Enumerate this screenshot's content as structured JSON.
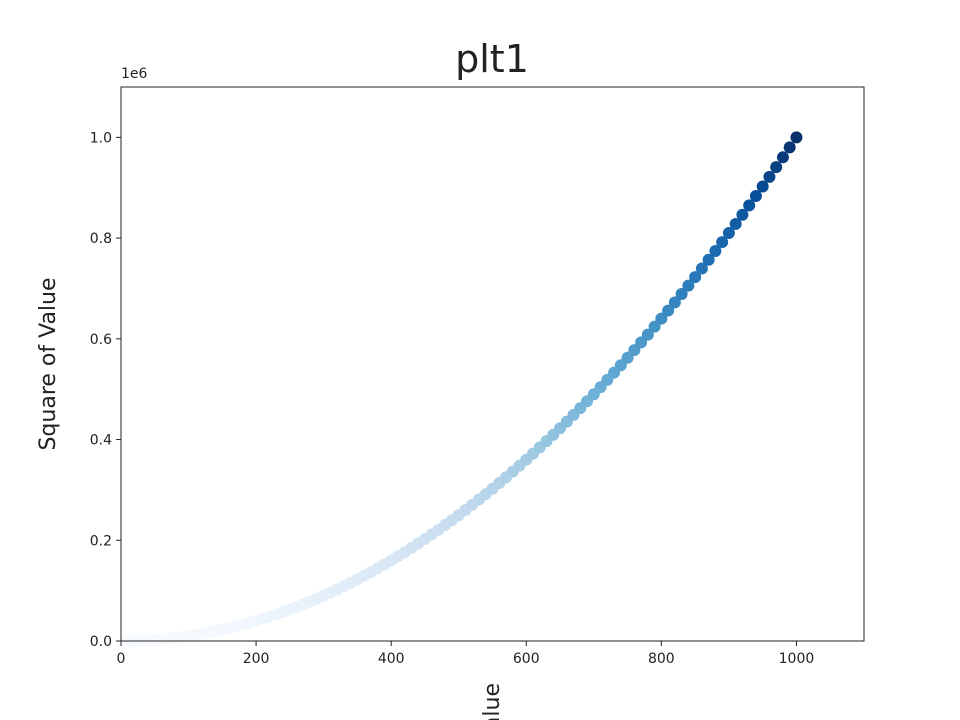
{
  "chart_data": {
    "type": "scatter",
    "title": "plt1",
    "ylabel": "Square of Value",
    "xlabel": "Value",
    "y_offset_label": "1e6",
    "cmap": "Blues",
    "x": [
      10,
      20,
      30,
      40,
      50,
      60,
      70,
      80,
      90,
      100,
      110,
      120,
      130,
      140,
      150,
      160,
      170,
      180,
      190,
      200,
      210,
      220,
      230,
      240,
      250,
      260,
      270,
      280,
      290,
      300,
      310,
      320,
      330,
      340,
      350,
      360,
      370,
      380,
      390,
      400,
      410,
      420,
      430,
      440,
      450,
      460,
      470,
      480,
      490,
      500,
      510,
      520,
      530,
      540,
      550,
      560,
      570,
      580,
      590,
      600,
      610,
      620,
      630,
      640,
      650,
      660,
      670,
      680,
      690,
      700,
      710,
      720,
      730,
      740,
      750,
      760,
      770,
      780,
      790,
      800,
      810,
      820,
      830,
      840,
      850,
      860,
      870,
      880,
      890,
      900,
      910,
      920,
      930,
      940,
      950,
      960,
      970,
      980,
      990,
      1000
    ],
    "values": [
      100,
      400,
      900,
      1600,
      2500,
      3600,
      4900,
      6400,
      8100,
      10000,
      12100,
      14400,
      16900,
      19600,
      22500,
      25600,
      28900,
      32400,
      36100,
      40000,
      44100,
      48400,
      52900,
      57600,
      62500,
      67600,
      72900,
      78400,
      84100,
      90000,
      96100,
      102400,
      108900,
      115600,
      122500,
      129600,
      136900,
      144400,
      152100,
      160000,
      168100,
      176400,
      184900,
      193600,
      202500,
      211600,
      220900,
      230400,
      240100,
      250000,
      260100,
      270400,
      280900,
      291600,
      302500,
      313600,
      324900,
      336400,
      348100,
      360000,
      372100,
      384400,
      396900,
      409600,
      422500,
      435600,
      448900,
      462400,
      476100,
      490000,
      504100,
      518400,
      532900,
      547600,
      562500,
      577600,
      592900,
      608400,
      624100,
      640000,
      656100,
      672400,
      688900,
      705600,
      722500,
      739600,
      756900,
      774400,
      792100,
      810000,
      828100,
      846400,
      864900,
      883600,
      902500,
      921600,
      940900,
      960400,
      980100,
      1000000
    ],
    "xlim": [
      0,
      1100
    ],
    "ylim": [
      0,
      1100000
    ],
    "xticks": [
      0,
      200,
      400,
      600,
      800,
      1000
    ],
    "yticks": [
      {
        "value": 0,
        "label": "0.0"
      },
      {
        "value": 200000,
        "label": "0.2"
      },
      {
        "value": 400000,
        "label": "0.4"
      },
      {
        "value": 600000,
        "label": "0.6"
      },
      {
        "value": 800000,
        "label": "0.8"
      },
      {
        "value": 1000000,
        "label": "1.0"
      }
    ]
  }
}
